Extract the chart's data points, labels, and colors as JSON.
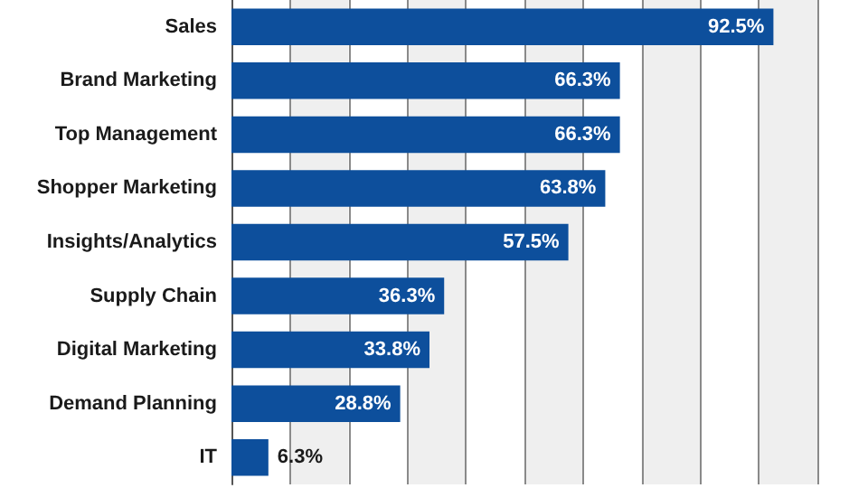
{
  "chart_data": {
    "type": "bar",
    "orientation": "horizontal",
    "categories": [
      "Sales",
      "Brand Marketing",
      "Top Management",
      "Shopper Marketing",
      "Insights/Analytics",
      "Supply Chain",
      "Digital Marketing",
      "Demand Planning",
      "IT"
    ],
    "values": [
      92.5,
      66.3,
      66.3,
      63.8,
      57.5,
      36.3,
      33.8,
      28.8,
      6.3
    ],
    "value_labels": [
      "92.5%",
      "66.3%",
      "66.3%",
      "63.8%",
      "57.5%",
      "36.3%",
      "33.8%",
      "28.8%",
      "6.3%"
    ],
    "color": "#0d4f9c",
    "xlim": [
      0,
      100
    ],
    "xticks": [
      {
        "value": 0,
        "label": null
      },
      {
        "value": 10,
        "label": null
      },
      {
        "value": 20,
        "label": null
      },
      {
        "value": 30,
        "label": null
      },
      {
        "value": 40,
        "label": null
      },
      {
        "value": 50,
        "label": null
      },
      {
        "value": 60,
        "label": null
      },
      {
        "value": 70,
        "label": null
      },
      {
        "value": 80,
        "label": null
      },
      {
        "value": 90,
        "label": null
      },
      {
        "value": 100,
        "label": null
      }
    ],
    "tick_labels": "y",
    "grid": "x"
  }
}
